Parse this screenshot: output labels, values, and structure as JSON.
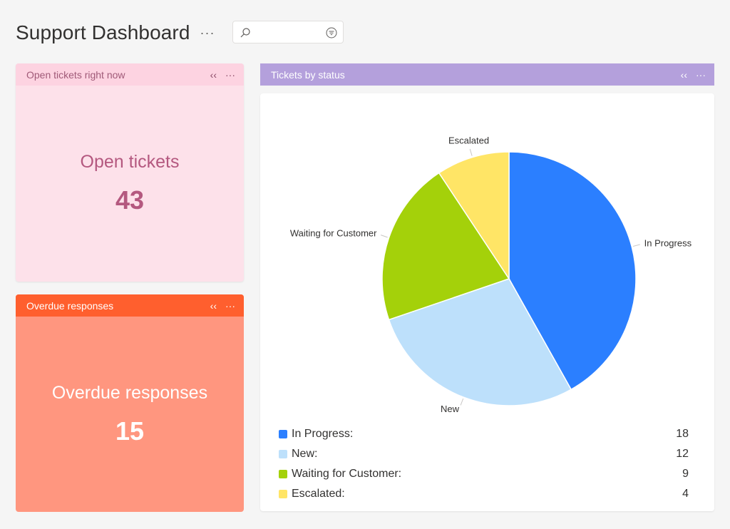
{
  "header": {
    "title": "Support Dashboard",
    "more": "···",
    "search": {
      "value": "",
      "placeholder": ""
    }
  },
  "icons": {
    "search": "search-icon",
    "filter": "filter-icon",
    "collapse": "collapse-icon",
    "more": "more-icon"
  },
  "tiles": {
    "open": {
      "header": "Open tickets right now",
      "label": "Open tickets",
      "value": "43",
      "collapse": "‹‹",
      "more": "···",
      "color": "#fdd3e1"
    },
    "overdue": {
      "header": "Overdue responses",
      "label": "Overdue responses",
      "value": "15",
      "collapse": "‹‹",
      "more": "···",
      "color": "#ff5f2e"
    }
  },
  "chart_widget": {
    "header": "Tickets by status",
    "collapse": "‹‹",
    "more": "···",
    "color": "#b4a0dc"
  },
  "chart_data": {
    "type": "pie",
    "title": "",
    "categories": [
      "In Progress",
      "New",
      "Waiting for Customer",
      "Escalated"
    ],
    "values": [
      18,
      12,
      9,
      4
    ],
    "colors": [
      "#2b7fff",
      "#bde0fb",
      "#a4d10a",
      "#ffe566"
    ],
    "legend": {
      "placement": "bottom",
      "items": [
        {
          "name": "In Progress:",
          "value": "18"
        },
        {
          "name": "New:",
          "value": "12"
        },
        {
          "name": "Waiting for Customer:",
          "value": "9"
        },
        {
          "name": "Escalated:",
          "value": "4"
        }
      ]
    }
  }
}
